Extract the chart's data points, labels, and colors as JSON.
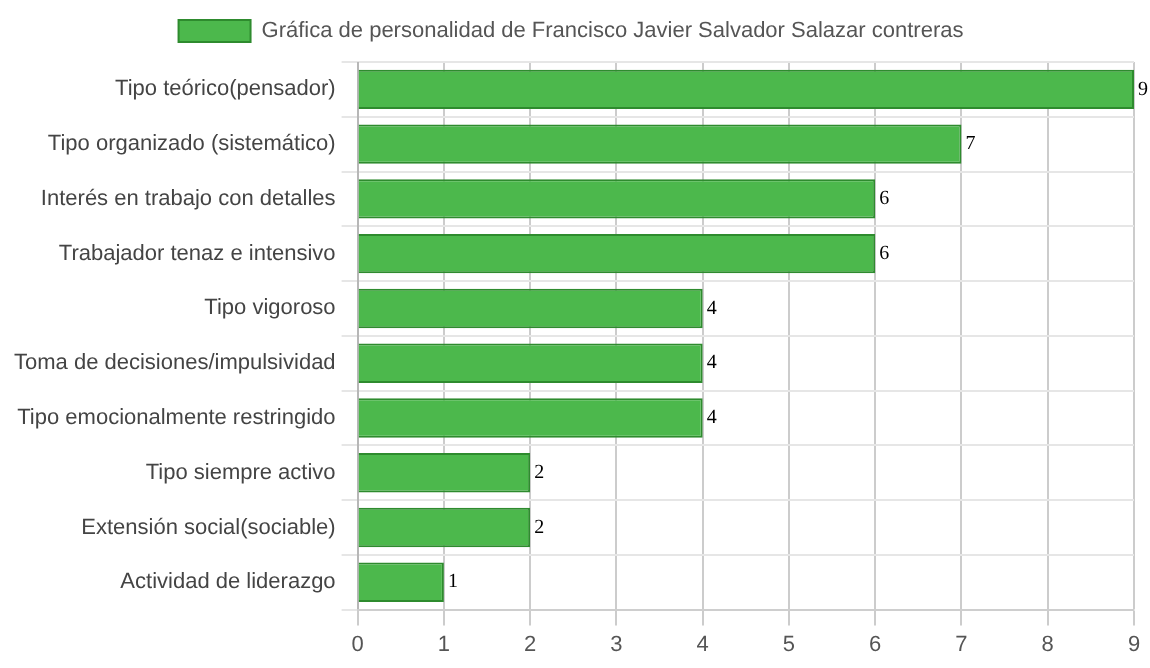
{
  "chart_data": {
    "type": "bar",
    "orientation": "horizontal",
    "categories": [
      "Tipo teórico(pensador)",
      "Tipo organizado (sistemático)",
      "Interés en trabajo con detalles",
      "Trabajador tenaz e intensivo",
      "Tipo vigoroso",
      "Toma de decisiones/impulsividad",
      "Tipo emocionalmente restringido",
      "Tipo siempre activo",
      "Extensión social(sociable)",
      "Actividad de liderazgo"
    ],
    "series": [
      {
        "name": "Gráfica de personalidad de Francisco Javier Salvador Salazar contreras",
        "color": "#4cb84c",
        "values": [
          9,
          7,
          6,
          6,
          4,
          4,
          4,
          2,
          2,
          1
        ]
      }
    ],
    "xlim": [
      0,
      9
    ],
    "xticks": [
      0,
      1,
      2,
      3,
      4,
      5,
      6,
      7,
      8,
      9
    ],
    "grid": true,
    "legend": "top",
    "data_labels": true
  }
}
